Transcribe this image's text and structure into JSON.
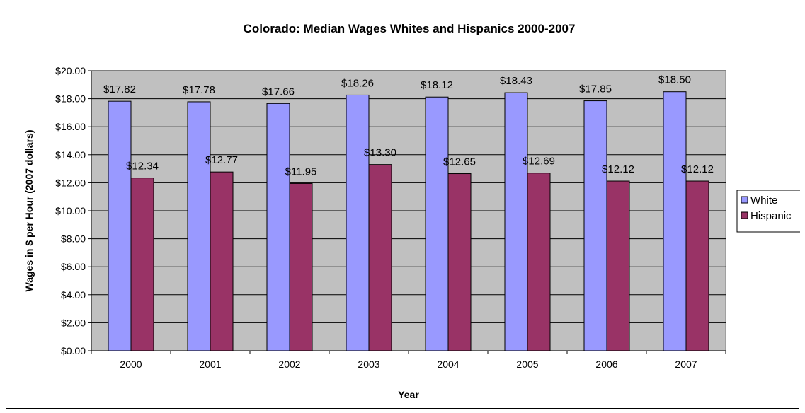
{
  "chart_data": {
    "type": "bar",
    "title": "Colorado: Median Wages Whites and Hispanics 2000-2007",
    "xlabel": "Year",
    "ylabel": "Wages in $ per Hour (2007 dollars)",
    "categories": [
      "2000",
      "2001",
      "2002",
      "2003",
      "2004",
      "2005",
      "2006",
      "2007"
    ],
    "series": [
      {
        "name": "White",
        "color": "#9999ff",
        "values": [
          17.82,
          17.78,
          17.66,
          18.26,
          18.12,
          18.43,
          17.85,
          18.5
        ],
        "labels": [
          "$17.82",
          "$17.78",
          "$17.66",
          "$18.26",
          "$18.12",
          "$18.43",
          "$17.85",
          "$18.50"
        ]
      },
      {
        "name": "Hispanic",
        "color": "#993366",
        "values": [
          12.34,
          12.77,
          11.95,
          13.3,
          12.65,
          12.69,
          12.12,
          12.12
        ],
        "labels": [
          "$12.34",
          "$12.77",
          "$11.95",
          "$13.30",
          "$12.65",
          "$12.69",
          "$12.12",
          "$12.12"
        ]
      }
    ],
    "ylim": [
      0,
      20
    ],
    "yticks": [
      0,
      2,
      4,
      6,
      8,
      10,
      12,
      14,
      16,
      18,
      20
    ],
    "ytick_labels": [
      "$0.00",
      "$2.00",
      "$4.00",
      "$6.00",
      "$8.00",
      "$10.00",
      "$12.00",
      "$14.00",
      "$16.00",
      "$18.00",
      "$20.00"
    ],
    "grid": true,
    "plot_background": "#c0c0c0",
    "legend_position": "right"
  }
}
